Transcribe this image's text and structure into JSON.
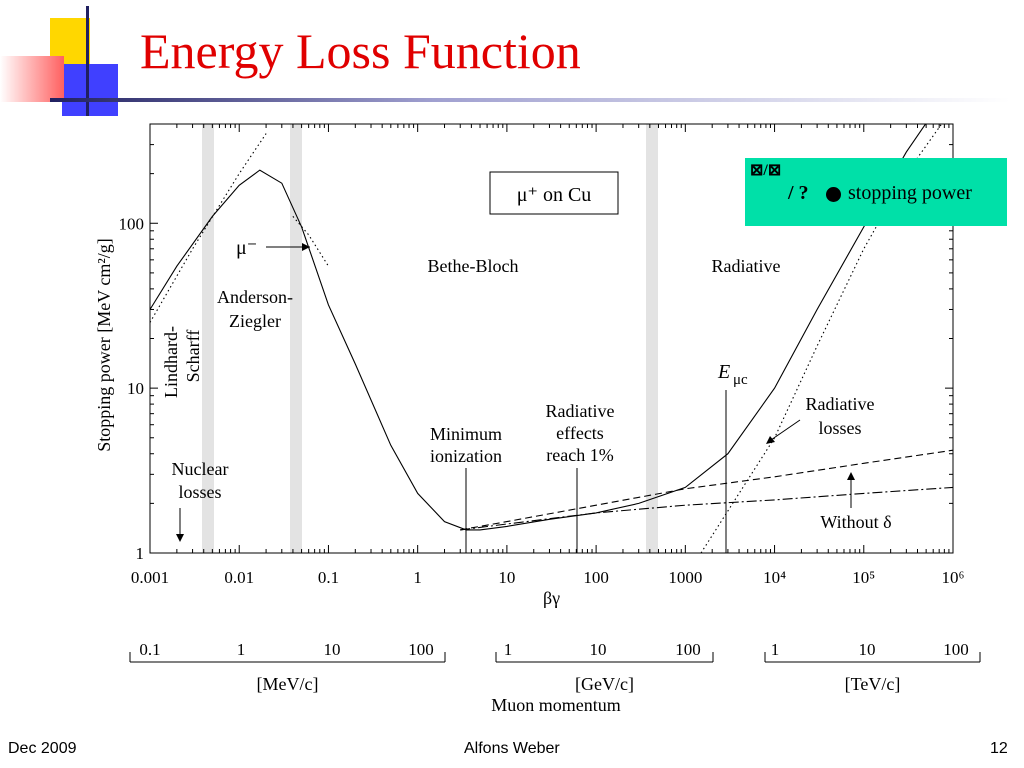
{
  "slide": {
    "title": "Energy Loss Function",
    "footer_left": "Dec 2009",
    "footer_center": "Alfons Weber",
    "footer_right": "12"
  },
  "legend": {
    "fraction_glyph": "⊠/⊠",
    "slash": "/ ?",
    "label": "stopping power",
    "color": "#00e0a8"
  },
  "chart_data": {
    "type": "line",
    "xscale": "log",
    "yscale": "log",
    "xlim": [
      0.001,
      1000000
    ],
    "ylim": [
      1,
      400
    ],
    "xlabel": "βγ",
    "ylabel": "Stopping power [MeV cm²/g]",
    "x_tick_labels": [
      "0.001",
      "0.01",
      "0.1",
      "1",
      "10",
      "100",
      "1000",
      "10⁴",
      "10⁵",
      "10⁶"
    ],
    "y_tick_labels": [
      "1",
      "10",
      "100"
    ],
    "box_label": "μ⁺ on Cu",
    "region_labels": [
      "Bethe-Bloch",
      "Radiative",
      "Anderson-",
      "Ziegler",
      "Lindhard-",
      "Scharff"
    ],
    "annotations": [
      "μ⁻",
      "Minimum",
      "ionization",
      "Radiative",
      "effects",
      "reach 1%",
      "E",
      "μc",
      "Radiative",
      "losses",
      "Nuclear",
      "losses",
      "Without δ"
    ],
    "series": [
      {
        "style": "solid",
        "x": [
          0.001,
          0.002,
          0.005,
          0.01,
          0.017,
          0.03,
          0.05,
          0.1,
          0.2,
          0.5,
          1,
          2,
          3.5,
          5,
          10,
          30,
          100,
          300,
          1000,
          3000,
          10000,
          30000,
          100000,
          300000,
          1000000
        ],
        "y": [
          30,
          55,
          110,
          170,
          210,
          175,
          95,
          32,
          14,
          4.5,
          2.3,
          1.55,
          1.38,
          1.38,
          1.45,
          1.6,
          1.75,
          2,
          2.5,
          4,
          10,
          30,
          95,
          270,
          700
        ]
      },
      {
        "style": "dashed",
        "x": [
          3,
          10,
          100,
          1000,
          10000,
          100000,
          1000000
        ],
        "y": [
          1.38,
          1.55,
          1.95,
          2.45,
          2.9,
          3.5,
          4.2
        ]
      },
      {
        "style": "dash-dot",
        "x": [
          3,
          10,
          100,
          1000,
          10000,
          100000,
          1000000
        ],
        "y": [
          1.38,
          1.5,
          1.75,
          1.95,
          2.1,
          2.3,
          2.5
        ]
      },
      {
        "style": "dotted",
        "x": [
          1500,
          3000,
          10000,
          30000,
          100000,
          300000,
          1000000
        ],
        "y": [
          1,
          1.8,
          5,
          18,
          70,
          200,
          500
        ]
      },
      {
        "style": "dotted",
        "x": [
          0.001,
          0.003,
          0.01,
          0.02
        ],
        "y": [
          25,
          70,
          200,
          350
        ]
      },
      {
        "style": "dotted",
        "x": [
          0.04,
          0.06,
          0.1
        ],
        "y": [
          110,
          85,
          55
        ]
      }
    ],
    "momentum_axes": [
      {
        "unit": "[MeV/c]",
        "ticks": [
          "0.1",
          "1",
          "10",
          "100"
        ]
      },
      {
        "unit": "[GeV/c]",
        "ticks": [
          "1",
          "10",
          "100"
        ]
      },
      {
        "unit": "[TeV/c]",
        "ticks": [
          "1",
          "10",
          "100"
        ]
      }
    ],
    "momentum_label": "Muon momentum"
  }
}
